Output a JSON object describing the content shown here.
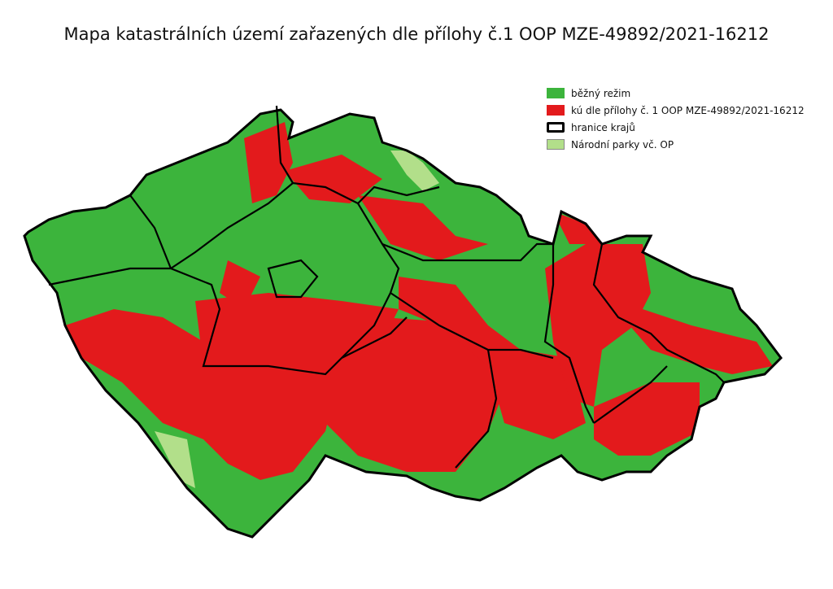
{
  "title": "Mapa katastrálních území zařazených dle přílohy č.1  OOP MZE-49892/2021-16212",
  "legend": [
    {
      "label": "běžný režim",
      "color": "#3cb43c",
      "style": "fill"
    },
    {
      "label": "kú dle přílohy č. 1 OOP MZE-49892/2021-16212",
      "color": "#e31a1c",
      "style": "fill"
    },
    {
      "label": "hranice krajů",
      "color": "#000000",
      "style": "outline"
    },
    {
      "label": "Národní parky vč. OP",
      "color": "#b2df8a",
      "style": "fill"
    }
  ]
}
